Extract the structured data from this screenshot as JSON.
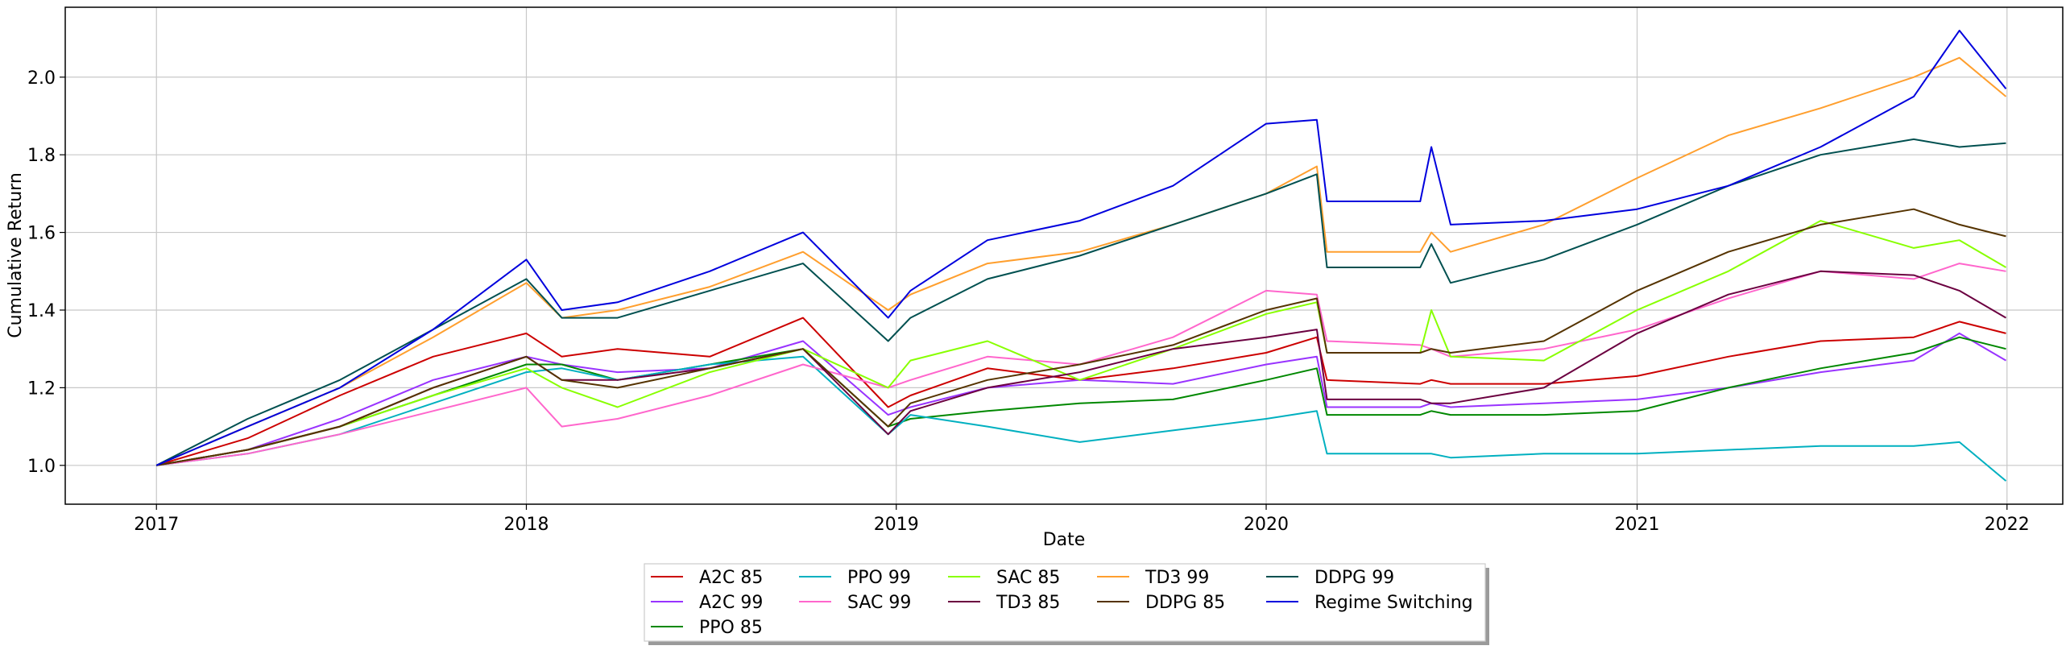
{
  "chart_data": {
    "type": "line",
    "title": "",
    "xlabel": "Date",
    "ylabel": "Cumulative Return",
    "x_ticks": [
      "2017",
      "2018",
      "2019",
      "2020",
      "2021",
      "2022"
    ],
    "y_ticks": [
      "1.0",
      "1.2",
      "1.4",
      "1.6",
      "1.8",
      "2.0"
    ],
    "xlim": [
      "2016-10-03",
      "2022-02-25"
    ],
    "ylim": [
      0.9,
      2.18
    ],
    "grid": true,
    "legend_position": "below-center",
    "x": [
      "2017-01-01",
      "2017-04-01",
      "2017-07-01",
      "2017-10-01",
      "2018-01-01",
      "2018-02-05",
      "2018-04-01",
      "2018-07-01",
      "2018-10-01",
      "2018-12-24",
      "2019-01-15",
      "2019-04-01",
      "2019-07-01",
      "2019-10-01",
      "2020-01-01",
      "2020-02-20",
      "2020-03-01",
      "2020-06-01",
      "2020-06-12",
      "2020-07-01",
      "2020-10-01",
      "2021-01-01",
      "2021-04-01",
      "2021-07-01",
      "2021-10-01",
      "2021-11-15",
      "2021-12-31"
    ],
    "series": [
      {
        "name": "A2C 85",
        "color": "#cc0000",
        "values": [
          1.0,
          1.07,
          1.18,
          1.28,
          1.34,
          1.28,
          1.3,
          1.28,
          1.38,
          1.15,
          1.18,
          1.25,
          1.22,
          1.25,
          1.29,
          1.33,
          1.22,
          1.21,
          1.22,
          1.21,
          1.21,
          1.23,
          1.28,
          1.32,
          1.33,
          1.37,
          1.34
        ]
      },
      {
        "name": "A2C 99",
        "color": "#9933ff",
        "values": [
          1.0,
          1.04,
          1.12,
          1.22,
          1.28,
          1.26,
          1.24,
          1.25,
          1.32,
          1.13,
          1.15,
          1.2,
          1.22,
          1.21,
          1.26,
          1.28,
          1.15,
          1.15,
          1.16,
          1.15,
          1.16,
          1.17,
          1.2,
          1.24,
          1.27,
          1.34,
          1.27
        ]
      },
      {
        "name": "PPO 85",
        "color": "#008800",
        "values": [
          1.0,
          1.04,
          1.1,
          1.18,
          1.26,
          1.26,
          1.22,
          1.26,
          1.3,
          1.1,
          1.12,
          1.14,
          1.16,
          1.17,
          1.22,
          1.25,
          1.13,
          1.13,
          1.14,
          1.13,
          1.13,
          1.14,
          1.2,
          1.25,
          1.29,
          1.33,
          1.3
        ]
      },
      {
        "name": "PPO 99",
        "color": "#00b0c0",
        "values": [
          1.0,
          1.03,
          1.08,
          1.16,
          1.24,
          1.25,
          1.22,
          1.26,
          1.28,
          1.08,
          1.13,
          1.1,
          1.06,
          1.09,
          1.12,
          1.14,
          1.03,
          1.03,
          1.03,
          1.02,
          1.03,
          1.03,
          1.04,
          1.05,
          1.05,
          1.06,
          0.96
        ]
      },
      {
        "name": "SAC 99",
        "color": "#ff66cc",
        "values": [
          1.0,
          1.03,
          1.08,
          1.14,
          1.2,
          1.1,
          1.12,
          1.18,
          1.26,
          1.2,
          1.22,
          1.28,
          1.26,
          1.33,
          1.45,
          1.44,
          1.32,
          1.31,
          1.3,
          1.28,
          1.3,
          1.35,
          1.43,
          1.5,
          1.48,
          1.52,
          1.5
        ]
      },
      {
        "name": "SAC 85",
        "color": "#88ff00",
        "values": [
          1.0,
          1.04,
          1.1,
          1.18,
          1.25,
          1.2,
          1.15,
          1.24,
          1.3,
          1.2,
          1.27,
          1.32,
          1.22,
          1.3,
          1.39,
          1.42,
          1.29,
          1.29,
          1.4,
          1.28,
          1.27,
          1.4,
          1.5,
          1.63,
          1.56,
          1.58,
          1.51
        ]
      },
      {
        "name": "TD3 85",
        "color": "#6b0040",
        "values": [
          1.0,
          1.04,
          1.1,
          1.2,
          1.28,
          1.22,
          1.22,
          1.25,
          1.3,
          1.08,
          1.14,
          1.2,
          1.24,
          1.3,
          1.33,
          1.35,
          1.17,
          1.17,
          1.16,
          1.16,
          1.2,
          1.34,
          1.44,
          1.5,
          1.49,
          1.45,
          1.38
        ]
      },
      {
        "name": "TD3 99",
        "color": "#ff9f2e",
        "values": [
          1.0,
          1.1,
          1.2,
          1.33,
          1.47,
          1.38,
          1.4,
          1.46,
          1.55,
          1.4,
          1.44,
          1.52,
          1.55,
          1.62,
          1.7,
          1.77,
          1.55,
          1.55,
          1.6,
          1.55,
          1.62,
          1.74,
          1.85,
          1.92,
          2.0,
          2.05,
          1.95
        ]
      },
      {
        "name": "DDPG 85",
        "color": "#553300",
        "values": [
          1.0,
          1.04,
          1.1,
          1.2,
          1.28,
          1.22,
          1.2,
          1.25,
          1.3,
          1.1,
          1.16,
          1.22,
          1.26,
          1.31,
          1.4,
          1.43,
          1.29,
          1.29,
          1.3,
          1.29,
          1.32,
          1.45,
          1.55,
          1.62,
          1.66,
          1.62,
          1.59
        ]
      },
      {
        "name": "DDPG 99",
        "color": "#005050",
        "values": [
          1.0,
          1.12,
          1.22,
          1.35,
          1.48,
          1.38,
          1.38,
          1.45,
          1.52,
          1.32,
          1.38,
          1.48,
          1.54,
          1.62,
          1.7,
          1.75,
          1.51,
          1.51,
          1.57,
          1.47,
          1.53,
          1.62,
          1.72,
          1.8,
          1.84,
          1.82,
          1.83
        ]
      },
      {
        "name": "Regime Switching",
        "color": "#0000dd",
        "values": [
          1.0,
          1.1,
          1.2,
          1.35,
          1.53,
          1.4,
          1.42,
          1.5,
          1.6,
          1.38,
          1.45,
          1.58,
          1.63,
          1.72,
          1.88,
          1.89,
          1.68,
          1.68,
          1.82,
          1.62,
          1.63,
          1.66,
          1.72,
          1.82,
          1.95,
          2.12,
          1.97
        ]
      }
    ]
  }
}
